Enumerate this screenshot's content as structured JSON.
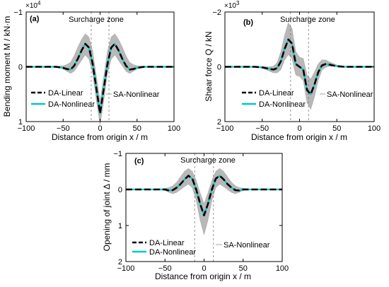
{
  "chart_data": [
    {
      "panel": "(a)",
      "type": "line",
      "annotation": "Surcharge zone",
      "exponent_label": "×10",
      "exponent_power": "4",
      "xlabel": "Distance from origin x / m",
      "ylabel": "Bending moment M / kN·m",
      "xlim": [
        -100,
        100
      ],
      "ylim": [
        -1,
        1
      ],
      "y_inverted": true,
      "x_ticks": [
        -100,
        -50,
        0,
        50,
        100
      ],
      "x_tick_labels": [
        "−100",
        "−50",
        "0",
        "50",
        "100"
      ],
      "y_ticks": [
        -1,
        0,
        1
      ],
      "y_tick_labels": [
        "−1",
        "0",
        "1"
      ],
      "surcharge_lines": [
        -12,
        12
      ],
      "band_label": "SA-Nonlinear",
      "x": [
        -100,
        -90,
        -80,
        -70,
        -60,
        -50,
        -45,
        -40,
        -35,
        -30,
        -25,
        -20,
        -15,
        -10,
        -5,
        0,
        5,
        10,
        15,
        20,
        25,
        30,
        35,
        40,
        45,
        50,
        60,
        70,
        80,
        90,
        100
      ],
      "series": [
        {
          "name": "DA-Linear",
          "color": "#000000",
          "style": "dashed",
          "values": [
            0,
            0,
            0,
            0,
            0,
            0.02,
            0.04,
            0.05,
            -0.02,
            -0.15,
            -0.3,
            -0.42,
            -0.35,
            -0.05,
            0.4,
            0.85,
            0.4,
            -0.05,
            -0.35,
            -0.42,
            -0.3,
            -0.15,
            -0.02,
            0.05,
            0.04,
            0.02,
            0,
            0,
            0,
            0,
            0
          ]
        },
        {
          "name": "DA-Nonlinear",
          "color": "#00c8c8",
          "style": "solid",
          "values": [
            0,
            0,
            0,
            0,
            0,
            0.02,
            0.04,
            0.05,
            -0.02,
            -0.15,
            -0.3,
            -0.42,
            -0.35,
            -0.05,
            0.4,
            0.85,
            0.4,
            -0.05,
            -0.35,
            -0.42,
            -0.3,
            -0.15,
            -0.02,
            0.05,
            0.04,
            0.02,
            0,
            0,
            0,
            0,
            0
          ]
        }
      ],
      "band": {
        "name": "SA-Nonlinear",
        "color": "#b8b8b8",
        "upper": [
          0,
          0,
          0,
          0,
          0,
          0.04,
          0.08,
          0.12,
          0.08,
          -0.02,
          -0.12,
          -0.22,
          -0.14,
          0.12,
          0.62,
          1.05,
          0.62,
          0.12,
          -0.14,
          -0.22,
          -0.12,
          -0.02,
          0.08,
          0.12,
          0.08,
          0.04,
          0,
          0,
          0,
          0,
          0
        ],
        "lower": [
          0,
          0,
          0,
          0,
          -0.01,
          -0.02,
          -0.04,
          -0.08,
          -0.2,
          -0.36,
          -0.5,
          -0.6,
          -0.54,
          -0.28,
          0.18,
          0.62,
          0.18,
          -0.28,
          -0.54,
          -0.6,
          -0.5,
          -0.36,
          -0.2,
          -0.08,
          -0.04,
          -0.02,
          -0.01,
          0,
          0,
          0,
          0
        ]
      },
      "legend": [
        {
          "label": "DA-Linear",
          "color": "#000000",
          "style": "dashed"
        },
        {
          "label": "DA-Nonlinear",
          "color": "#00c8c8",
          "style": "solid"
        }
      ]
    },
    {
      "panel": "(b)",
      "type": "line",
      "annotation": "Surcharge zone",
      "exponent_label": "×10",
      "exponent_power": "3",
      "xlabel": "Distance from origin x / m",
      "ylabel": "Shear force Q / kN",
      "xlim": [
        -100,
        100
      ],
      "ylim": [
        -2,
        2
      ],
      "y_inverted": true,
      "x_ticks": [
        -100,
        -50,
        0,
        50,
        100
      ],
      "x_tick_labels": [
        "−100",
        "−50",
        "0",
        "50",
        "100"
      ],
      "y_ticks": [
        -2,
        0,
        2
      ],
      "y_tick_labels": [
        "−2",
        "0",
        "2"
      ],
      "surcharge_lines": [
        -12,
        12
      ],
      "band_label": "SA-Nonlinear",
      "x": [
        -100,
        -90,
        -80,
        -70,
        -60,
        -50,
        -45,
        -40,
        -35,
        -30,
        -25,
        -20,
        -15,
        -10,
        -5,
        0,
        5,
        10,
        15,
        20,
        25,
        30,
        35,
        40,
        45,
        50,
        60,
        70,
        80,
        90,
        100
      ],
      "series": [
        {
          "name": "DA-Linear",
          "color": "#000000",
          "style": "dashed",
          "values": [
            0,
            0,
            0,
            0,
            0,
            0.02,
            0.05,
            0.08,
            0.1,
            0.05,
            -0.2,
            -0.65,
            -1.0,
            -0.85,
            -0.1,
            0.0,
            0.1,
            0.85,
            1.0,
            0.65,
            0.2,
            -0.05,
            -0.1,
            -0.08,
            -0.05,
            -0.02,
            0,
            0,
            0,
            0,
            0
          ]
        },
        {
          "name": "DA-Nonlinear",
          "color": "#00c8c8",
          "style": "solid",
          "values": [
            0,
            0,
            0,
            0,
            0,
            0.02,
            0.05,
            0.08,
            0.1,
            0.05,
            -0.2,
            -0.65,
            -1.0,
            -0.85,
            -0.1,
            0.0,
            0.1,
            0.85,
            1.0,
            0.65,
            0.2,
            -0.05,
            -0.1,
            -0.08,
            -0.05,
            -0.02,
            0,
            0,
            0,
            0,
            0
          ]
        }
      ],
      "band": {
        "name": "SA-Nonlinear",
        "color": "#b8b8b8",
        "upper": [
          0,
          0,
          0,
          0,
          0.02,
          0.05,
          0.1,
          0.16,
          0.22,
          0.22,
          0.1,
          -0.25,
          -0.45,
          -0.3,
          0.3,
          0.35,
          0.5,
          1.3,
          1.55,
          1.1,
          0.5,
          0.12,
          0.02,
          -0.02,
          -0.02,
          -0.01,
          0,
          0,
          0,
          0,
          0
        ],
        "lower": [
          0,
          0,
          0,
          0,
          0,
          -0.01,
          0.0,
          0.0,
          -0.02,
          -0.15,
          -0.55,
          -1.15,
          -1.6,
          -1.4,
          -0.55,
          -0.35,
          -0.3,
          0.3,
          0.45,
          0.2,
          -0.1,
          -0.25,
          -0.25,
          -0.18,
          -0.12,
          -0.06,
          -0.02,
          0,
          0,
          0,
          0
        ]
      },
      "legend": [
        {
          "label": "DA-Linear",
          "color": "#000000",
          "style": "dashed"
        },
        {
          "label": "DA-Nonlinear",
          "color": "#00c8c8",
          "style": "solid"
        }
      ]
    },
    {
      "panel": "(c)",
      "type": "line",
      "annotation": "Surcharge zone",
      "exponent_label": "",
      "exponent_power": "",
      "xlabel": "Distance from origin x / m",
      "ylabel": "Opening of joint Δ / mm",
      "xlim": [
        -100,
        100
      ],
      "ylim": [
        -1,
        2
      ],
      "y_inverted": true,
      "x_ticks": [
        -100,
        -50,
        0,
        50,
        100
      ],
      "x_tick_labels": [
        "−100",
        "−50",
        "0",
        "50",
        "100"
      ],
      "y_ticks": [
        -1,
        0,
        1,
        2
      ],
      "y_tick_labels": [
        "−1",
        "0",
        "1",
        "2"
      ],
      "surcharge_lines": [
        -12,
        12
      ],
      "band_label": "SA-Nonlinear",
      "x": [
        -100,
        -90,
        -80,
        -70,
        -60,
        -50,
        -45,
        -40,
        -35,
        -30,
        -25,
        -20,
        -15,
        -10,
        -5,
        0,
        5,
        10,
        15,
        20,
        25,
        30,
        35,
        40,
        45,
        50,
        60,
        70,
        80,
        90,
        100
      ],
      "series": [
        {
          "name": "DA-Linear",
          "color": "#000000",
          "style": "dashed",
          "values": [
            0,
            0,
            0,
            0,
            0,
            0,
            0.03,
            0.02,
            -0.05,
            -0.15,
            -0.28,
            -0.38,
            -0.3,
            0.0,
            0.4,
            0.72,
            0.4,
            0.0,
            -0.3,
            -0.38,
            -0.28,
            -0.15,
            -0.05,
            0.02,
            0.03,
            0,
            0,
            0,
            0,
            0,
            0
          ]
        },
        {
          "name": "DA-Nonlinear",
          "color": "#00c8c8",
          "style": "solid",
          "values": [
            0,
            0,
            0,
            0,
            0,
            0,
            0.03,
            0.02,
            -0.05,
            -0.15,
            -0.28,
            -0.38,
            -0.3,
            0.0,
            0.4,
            0.72,
            0.4,
            0.0,
            -0.3,
            -0.38,
            -0.28,
            -0.15,
            -0.05,
            0.02,
            0.03,
            0,
            0,
            0,
            0,
            0,
            0
          ]
        }
      ],
      "band": {
        "name": "SA-Nonlinear",
        "color": "#b8b8b8",
        "upper": [
          0,
          0,
          0,
          0,
          0.01,
          0.03,
          0.08,
          0.12,
          0.08,
          0.0,
          -0.08,
          -0.15,
          -0.05,
          0.3,
          0.85,
          1.25,
          0.85,
          0.3,
          -0.05,
          -0.15,
          -0.08,
          0.0,
          0.08,
          0.12,
          0.08,
          0.03,
          0.01,
          0,
          0,
          0,
          0
        ],
        "lower": [
          0,
          0,
          0,
          0,
          -0.01,
          -0.03,
          -0.05,
          -0.1,
          -0.2,
          -0.35,
          -0.5,
          -0.58,
          -0.5,
          -0.25,
          0.1,
          0.4,
          0.1,
          -0.25,
          -0.5,
          -0.58,
          -0.5,
          -0.35,
          -0.2,
          -0.1,
          -0.05,
          -0.03,
          -0.01,
          0,
          0,
          0,
          0
        ]
      },
      "legend": [
        {
          "label": "DA-Linear",
          "color": "#000000",
          "style": "dashed"
        },
        {
          "label": "DA-Nonlinear",
          "color": "#00c8c8",
          "style": "solid"
        }
      ]
    }
  ]
}
